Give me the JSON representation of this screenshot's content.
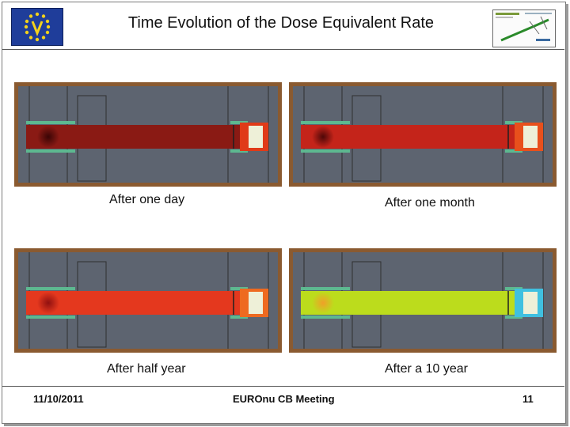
{
  "slide": {
    "title": "Time Evolution of the Dose Equivalent Rate",
    "footer": {
      "date": "11/10/2011",
      "meeting": "EUROnu CB Meeting",
      "page": "11"
    }
  },
  "panels": [
    {
      "caption": "After one day",
      "beam_color": "#8a1a14",
      "hot_color": "#3a0505",
      "target_color": "#e03a18"
    },
    {
      "caption": "After one month",
      "beam_color": "#c4241a",
      "hot_color": "#4e0808",
      "target_color": "#e8501c"
    },
    {
      "caption": "After half year",
      "beam_color": "#e4381e",
      "hot_color": "#901010",
      "target_color": "#ee6a20"
    },
    {
      "caption": "After a 10 year",
      "beam_color": "#bcdc1c",
      "hot_color": "#f0a028",
      "target_color": "#40c0e0"
    }
  ],
  "logos": {
    "left": "nu-euro-logo",
    "right": "beamline-logo"
  }
}
